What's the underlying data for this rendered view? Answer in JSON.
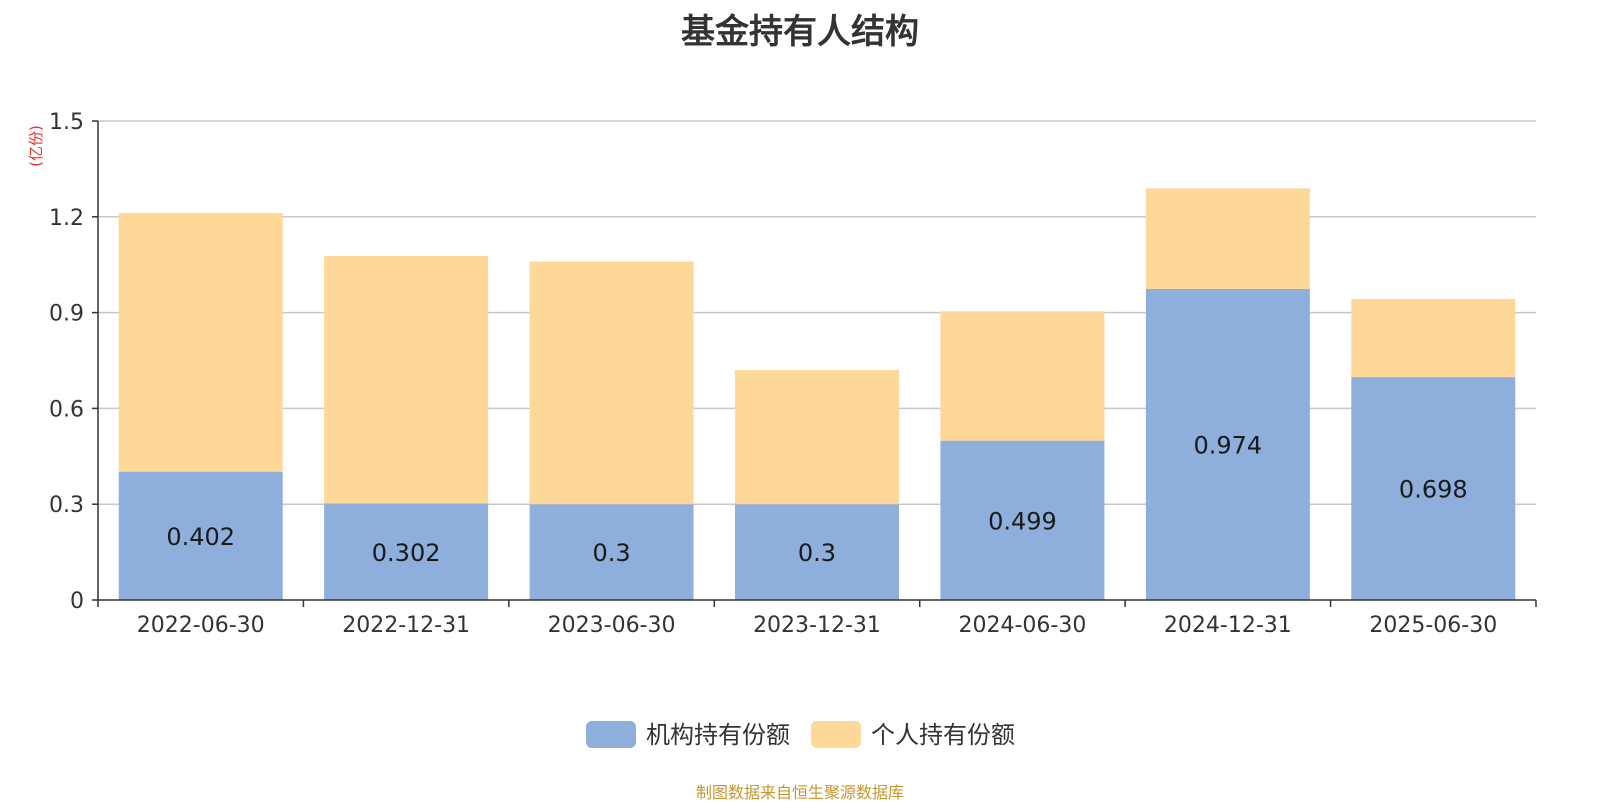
{
  "title": "基金持有人结构",
  "source": "制图数据来自恒生聚源数据库",
  "colors": {
    "institutional": "#8eaedb",
    "individual": "#fed899",
    "grid": "#c8c8c8",
    "axis": "#333333",
    "unit": "#e8302a"
  },
  "chart_data": {
    "type": "bar",
    "stacked": true,
    "title": "基金持有人结构",
    "ylabel": "(亿份)",
    "ylim": [
      0,
      1.5
    ],
    "yticks": [
      "0",
      "0.3",
      "0.6",
      "0.9",
      "1.2",
      "1.5"
    ],
    "grid": true,
    "legend_position": "bottom",
    "categories": [
      "2022-06-30",
      "2022-12-31",
      "2023-06-30",
      "2023-12-31",
      "2024-06-30",
      "2024-12-31",
      "2025-06-30"
    ],
    "series": [
      {
        "name": "机构持有份额",
        "values": [
          0.402,
          0.302,
          0.3,
          0.3,
          0.499,
          0.974,
          0.698
        ],
        "labels": [
          "0.402",
          "0.302",
          "0.3",
          "0.3",
          "0.499",
          "0.974",
          "0.698"
        ]
      },
      {
        "name": "个人持有份额",
        "values": [
          0.81,
          0.775,
          0.76,
          0.42,
          0.405,
          0.315,
          0.245
        ]
      }
    ]
  }
}
